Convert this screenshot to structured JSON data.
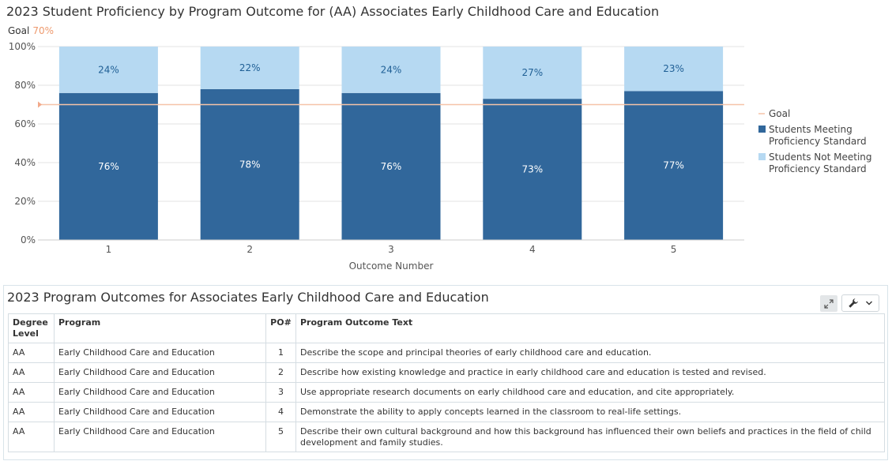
{
  "chart_data": {
    "type": "bar",
    "stacked": true,
    "title": "2023 Student Proficiency by Program Outcome for (AA) Associates Early Childhood Care and Education",
    "goal_label": "Goal",
    "goal_value_label": "70%",
    "goal": 70,
    "categories": [
      "1",
      "2",
      "3",
      "4",
      "5"
    ],
    "series": [
      {
        "name": "Students Meeting Proficiency Standard",
        "name_lines": [
          "Students Meeting",
          "Proficiency Standard"
        ],
        "values": [
          76,
          78,
          76,
          73,
          77
        ],
        "labels": [
          "76%",
          "78%",
          "76%",
          "73%",
          "77%"
        ],
        "color": "#31679b"
      },
      {
        "name": "Students Not Meeting Proficiency Standard",
        "name_lines": [
          "Students Not Meeting",
          "Proficiency Standard"
        ],
        "values": [
          24,
          22,
          24,
          27,
          23
        ],
        "labels": [
          "24%",
          "22%",
          "24%",
          "27%",
          "23%"
        ],
        "color": "#b6d9f2"
      }
    ],
    "goal_series": {
      "name": "Goal",
      "color": "#f6c3a8"
    },
    "xlabel": "Outcome Number",
    "ylabel": "",
    "ylim": [
      0,
      100
    ],
    "yticks": [
      0,
      20,
      40,
      60,
      80,
      100
    ],
    "ytick_labels": [
      "0%",
      "20%",
      "40%",
      "60%",
      "80%",
      "100%"
    ],
    "grid": true,
    "legend_position": "right"
  },
  "table_panel": {
    "title": "2023 Program Outcomes for Associates Early Childhood Care and Education",
    "expand_icon": "expand-icon",
    "tools_icon": "wrench-icon",
    "headers": [
      "Degree Level",
      "Program",
      "PO#",
      "Program Outcome Text"
    ],
    "rows": [
      [
        "AA",
        "Early Childhood Care and Education",
        "1",
        "Describe the scope and principal theories of early childhood care and education."
      ],
      [
        "AA",
        "Early Childhood Care and Education",
        "2",
        "Describe how existing knowledge and practice in early childhood care and education is tested and revised."
      ],
      [
        "AA",
        "Early Childhood Care and Education",
        "3",
        "Use appropriate research documents on early childhood care and education, and cite appropriately."
      ],
      [
        "AA",
        "Early Childhood Care and Education",
        "4",
        "Demonstrate the ability to apply concepts learned in the classroom to real-life settings."
      ],
      [
        "AA",
        "Early Childhood Care and Education",
        "5",
        "Describe their own cultural background and how this background has influenced their own beliefs and practices in the field of child development and family studies."
      ]
    ]
  }
}
